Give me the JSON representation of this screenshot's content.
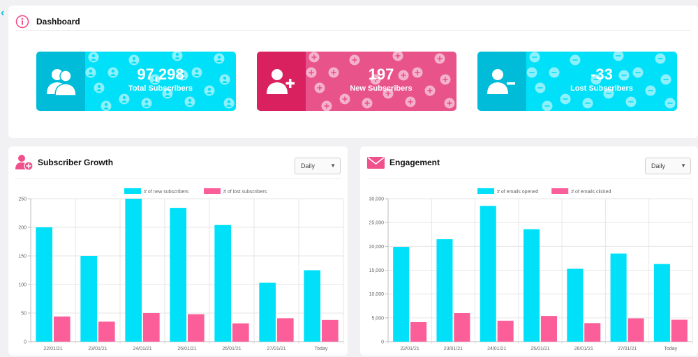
{
  "dashboard": {
    "title": "Dashboard",
    "cards": [
      {
        "value": "97,298",
        "label": "Total Subscribers",
        "color_icon": "#00bcd8",
        "color_body": "#00e1f9",
        "icon": "users-icon",
        "pattern": "user-icon"
      },
      {
        "value": "197",
        "label": "New Subscribers",
        "color_icon": "#d9215f",
        "color_body": "#e8538a",
        "icon": "user-plus-icon",
        "pattern": "plus-circle-icon"
      },
      {
        "value": "-33",
        "label": "Lost Subscribers",
        "color_icon": "#00bcd8",
        "color_body": "#00e1f9",
        "icon": "user-minus-icon",
        "pattern": "minus-circle-icon"
      }
    ]
  },
  "growth": {
    "title": "Subscriber Growth",
    "select_value": "Daily"
  },
  "engagement": {
    "title": "Engagement",
    "select_value": "Daily"
  },
  "colors": {
    "cyan": "#00e1f9",
    "pink": "#fc5e9a",
    "accent_pink": "#f0508c"
  },
  "chart_data": [
    {
      "type": "bar",
      "categories": [
        "22/01/21",
        "23/01/21",
        "24/01/21",
        "25/01/21",
        "26/01/21",
        "27/01/21",
        "Today"
      ],
      "series": [
        {
          "name": "# of new subscribers",
          "values": [
            200,
            150,
            250,
            234,
            204,
            103,
            125
          ],
          "color": "#00e1f9"
        },
        {
          "name": "# of lost subscribers",
          "values": [
            44,
            35,
            50,
            48,
            32,
            41,
            38
          ],
          "color": "#fc5e9a"
        }
      ],
      "ylim": [
        0,
        250
      ],
      "yticks": [
        "0",
        "50",
        "100",
        "150",
        "200",
        "250"
      ],
      "grid": true,
      "legend": "top"
    },
    {
      "type": "bar",
      "categories": [
        "22/01/21",
        "23/01/21",
        "24/01/21",
        "25/01/21",
        "26/01/21",
        "27/01/21",
        "Today"
      ],
      "series": [
        {
          "name": "# of emails opened",
          "values": [
            19900,
            21500,
            28500,
            23600,
            15300,
            18500,
            16300
          ],
          "color": "#00e1f9"
        },
        {
          "name": "# of emails clicked",
          "values": [
            4100,
            6000,
            4400,
            5400,
            3900,
            4900,
            4600
          ],
          "color": "#fc5e9a"
        }
      ],
      "ylim": [
        0,
        30000
      ],
      "yticks": [
        "0",
        "5,000",
        "10,000",
        "15,000",
        "20,000",
        "25,000",
        "30,000"
      ],
      "grid": true,
      "legend": "top"
    }
  ]
}
